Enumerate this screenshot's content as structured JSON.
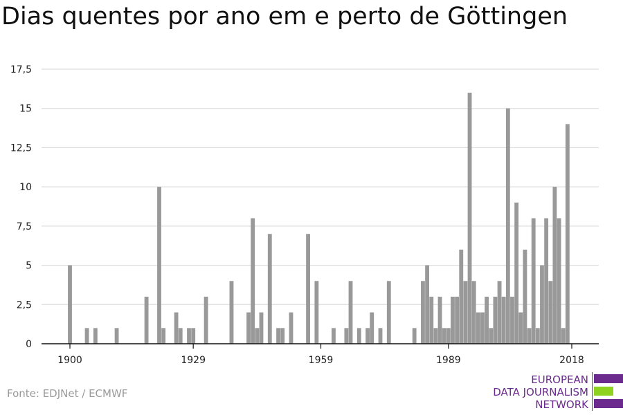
{
  "colors": {
    "bar": "#999999",
    "grid": "#dddddd",
    "axis": "#111111",
    "logo_purple": "#6b2b8e",
    "logo_green": "#8fd11f"
  },
  "source": "Fonte: EDJNet / ECMWF",
  "logo": {
    "line1": "EUROPEAN",
    "line2": "DATA JOURNALISM",
    "line3": "NETWORK"
  },
  "chart_data": {
    "type": "bar",
    "title": "Dias quentes por ano em e perto de Göttingen",
    "xlabel": "",
    "ylabel": "",
    "ylim": [
      0,
      17.5
    ],
    "yticks": [
      0,
      2.5,
      5,
      7.5,
      10,
      12.5,
      15,
      17.5
    ],
    "ytick_labels": [
      "0",
      "2,5",
      "5",
      "7,5",
      "10",
      "12,5",
      "15",
      "17,5"
    ],
    "xlim": [
      1900,
      2018
    ],
    "xticks": [
      1900,
      1929,
      1959,
      1989,
      2018
    ],
    "grid": true,
    "years": [
      1900,
      1904,
      1906,
      1911,
      1918,
      1921,
      1922,
      1925,
      1926,
      1928,
      1929,
      1932,
      1938,
      1942,
      1943,
      1944,
      1945,
      1947,
      1949,
      1950,
      1952,
      1956,
      1958,
      1962,
      1965,
      1966,
      1968,
      1970,
      1971,
      1973,
      1975,
      1981,
      1983,
      1984,
      1985,
      1986,
      1987,
      1988,
      1989,
      1990,
      1991,
      1992,
      1993,
      1994,
      1995,
      1996,
      1997,
      1998,
      1999,
      2000,
      2001,
      2002,
      2003,
      2004,
      2005,
      2006,
      2007,
      2008,
      2009,
      2010,
      2011,
      2012,
      2013,
      2014,
      2015,
      2016,
      2017,
      2018
    ],
    "values": [
      5,
      1,
      1,
      1,
      3,
      10,
      1,
      2,
      1,
      1,
      1,
      3,
      4,
      2,
      8,
      1,
      2,
      7,
      1,
      1,
      2,
      7,
      4,
      1,
      1,
      4,
      1,
      1,
      2,
      1,
      4,
      1,
      4,
      5,
      3,
      1,
      3,
      1,
      1,
      3,
      3,
      6,
      4,
      16,
      4,
      2,
      2,
      3,
      1,
      3,
      4,
      3,
      15,
      3,
      9,
      2,
      6,
      1,
      8,
      1,
      5,
      8,
      4,
      10,
      8,
      1,
      14,
      0
    ]
  }
}
